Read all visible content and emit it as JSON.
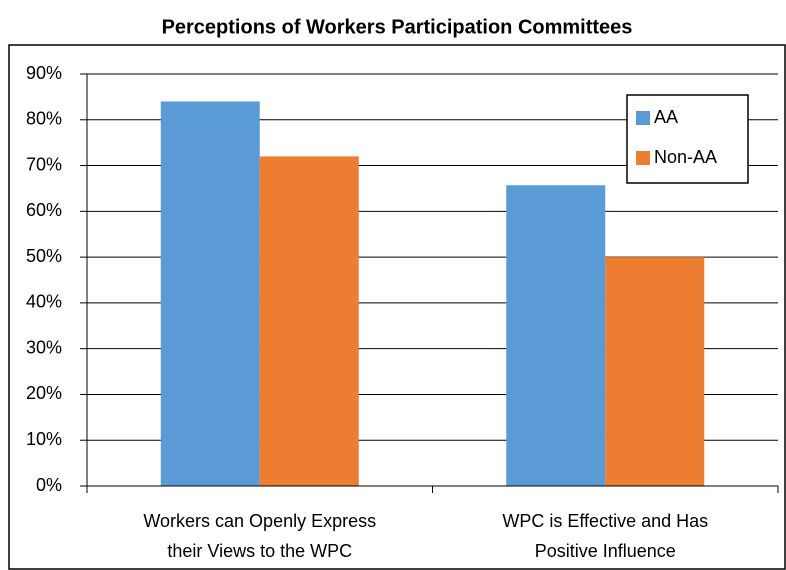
{
  "chart_data": {
    "type": "bar",
    "title": "Perceptions of Workers Participation Committees",
    "categories": [
      [
        "Workers can Openly Express",
        "their Views to the WPC"
      ],
      [
        "WPC is Effective and Has",
        "Positive Influence"
      ]
    ],
    "series": [
      {
        "name": "AA",
        "color": "#5b9bd5",
        "values": [
          84,
          65.7
        ]
      },
      {
        "name": "Non-AA",
        "color": "#ed7d31",
        "values": [
          72,
          50
        ]
      }
    ],
    "ylim": [
      0,
      90
    ],
    "yticks": [
      {
        "value": 0,
        "label": "0%"
      },
      {
        "value": 10,
        "label": "10%"
      },
      {
        "value": 20,
        "label": "20%"
      },
      {
        "value": 30,
        "label": "30%"
      },
      {
        "value": 40,
        "label": "40%"
      },
      {
        "value": 50,
        "label": "50%"
      },
      {
        "value": 60,
        "label": "60%"
      },
      {
        "value": 70,
        "label": "70%"
      },
      {
        "value": 80,
        "label": "80%"
      },
      {
        "value": 90,
        "label": "90%"
      }
    ],
    "grid": true,
    "legend": "upper right"
  }
}
